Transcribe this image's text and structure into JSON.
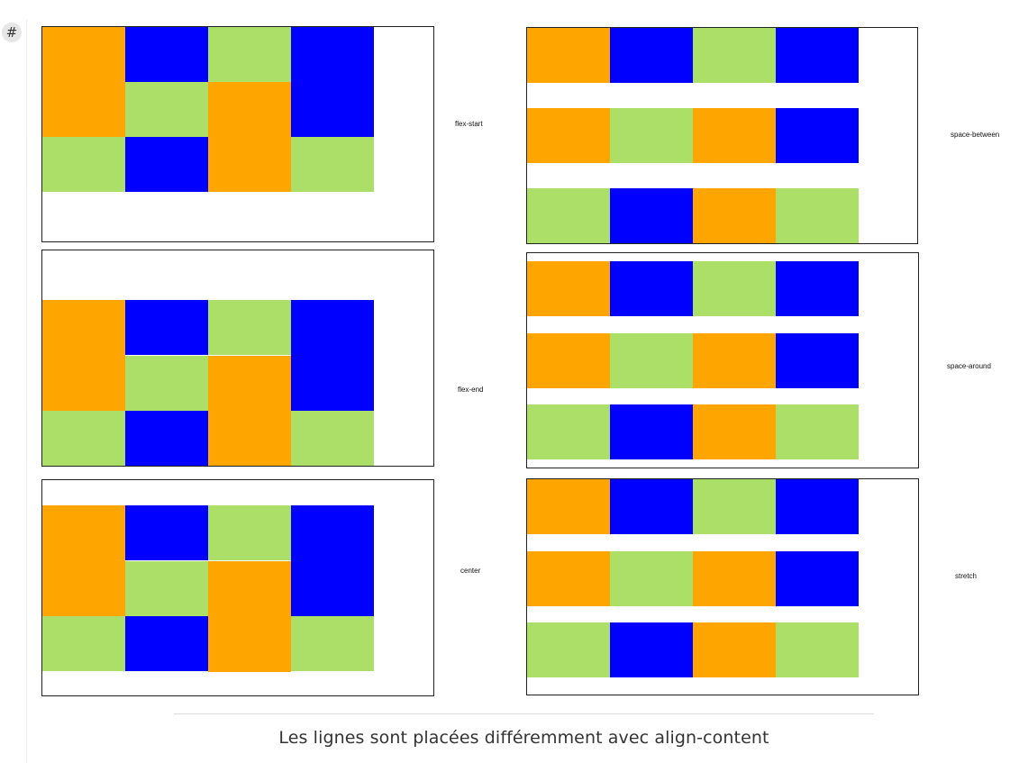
{
  "colors": {
    "orange": "#ffa500",
    "blue": "#0000ff",
    "green": "#acdf67"
  },
  "anchor_icon": "hash-icon",
  "anchor_symbol": "#",
  "caption": "Les lignes sont placées différemment avec align-content",
  "panels": [
    {
      "label": "flex-start",
      "items": [
        {
          "color": "orange",
          "span": 2
        },
        {
          "color": "blue",
          "span": 1
        },
        {
          "color": "green",
          "span": 1
        },
        {
          "color": "blue",
          "span": 2
        },
        {
          "color": "green",
          "span": 1
        },
        {
          "color": "orange",
          "span": 2
        },
        {
          "color": "green",
          "span": 1
        },
        {
          "color": "blue",
          "span": 1
        },
        {
          "color": "green",
          "span": 1
        }
      ]
    },
    {
      "label": "space-between",
      "items": [
        {
          "color": "orange",
          "span": 1
        },
        {
          "color": "blue",
          "span": 1
        },
        {
          "color": "green",
          "span": 1
        },
        {
          "color": "blue",
          "span": 1
        },
        {
          "color": "orange",
          "span": 1
        },
        {
          "color": "green",
          "span": 1
        },
        {
          "color": "orange",
          "span": 1
        },
        {
          "color": "blue",
          "span": 1
        },
        {
          "color": "green",
          "span": 1
        },
        {
          "color": "blue",
          "span": 1
        },
        {
          "color": "orange",
          "span": 1
        },
        {
          "color": "green",
          "span": 1
        }
      ]
    },
    {
      "label": "flex-end",
      "items": [
        {
          "color": "orange",
          "span": 2
        },
        {
          "color": "blue",
          "span": 1
        },
        {
          "color": "green",
          "span": 1
        },
        {
          "color": "blue",
          "span": 2
        },
        {
          "color": "green",
          "span": 1
        },
        {
          "color": "orange",
          "span": 2
        },
        {
          "color": "green",
          "span": 1
        },
        {
          "color": "blue",
          "span": 1
        },
        {
          "color": "green",
          "span": 1
        }
      ]
    },
    {
      "label": "space-around",
      "items": [
        {
          "color": "orange",
          "span": 1
        },
        {
          "color": "blue",
          "span": 1
        },
        {
          "color": "green",
          "span": 1
        },
        {
          "color": "blue",
          "span": 1
        },
        {
          "color": "orange",
          "span": 1
        },
        {
          "color": "green",
          "span": 1
        },
        {
          "color": "orange",
          "span": 1
        },
        {
          "color": "blue",
          "span": 1
        },
        {
          "color": "green",
          "span": 1
        },
        {
          "color": "blue",
          "span": 1
        },
        {
          "color": "orange",
          "span": 1
        },
        {
          "color": "green",
          "span": 1
        }
      ]
    },
    {
      "label": "center",
      "items": [
        {
          "color": "orange",
          "span": 2
        },
        {
          "color": "blue",
          "span": 1
        },
        {
          "color": "green",
          "span": 1
        },
        {
          "color": "blue",
          "span": 2
        },
        {
          "color": "green",
          "span": 1
        },
        {
          "color": "orange",
          "span": 2
        },
        {
          "color": "green",
          "span": 1
        },
        {
          "color": "blue",
          "span": 1
        },
        {
          "color": "green",
          "span": 1
        }
      ]
    },
    {
      "label": "stretch",
      "items": [
        {
          "color": "orange",
          "span": 1
        },
        {
          "color": "blue",
          "span": 1
        },
        {
          "color": "green",
          "span": 1
        },
        {
          "color": "blue",
          "span": 1
        },
        {
          "color": "orange",
          "span": 1
        },
        {
          "color": "green",
          "span": 1
        },
        {
          "color": "orange",
          "span": 1
        },
        {
          "color": "blue",
          "span": 1
        },
        {
          "color": "green",
          "span": 1
        },
        {
          "color": "blue",
          "span": 1
        },
        {
          "color": "orange",
          "span": 1
        },
        {
          "color": "green",
          "span": 1
        }
      ]
    }
  ]
}
